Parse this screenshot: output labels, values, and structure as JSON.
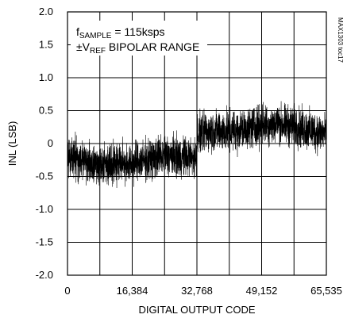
{
  "chart_data": {
    "type": "line",
    "title": "",
    "xlabel": "DIGITAL OUTPUT CODE",
    "ylabel": "INL (LSB)",
    "xlim": [
      0,
      65535
    ],
    "ylim": [
      -2.0,
      2.0
    ],
    "grid": true,
    "x_tick_labels": [
      "0",
      "16,384",
      "32,768",
      "49,152",
      "65,535"
    ],
    "x_ticks": [
      0,
      8192,
      16384,
      24576,
      32768,
      40960,
      49152,
      57344,
      65535
    ],
    "y_tick_labels": [
      "2.0",
      "1.5",
      "1.0",
      "0.5",
      "0",
      "-0.5",
      "-1.0",
      "-1.5",
      "-2.0"
    ],
    "y_ticks": [
      2.0,
      1.5,
      1.0,
      0.5,
      0,
      -0.5,
      -1.0,
      -1.5,
      -2.0
    ],
    "annotations": {
      "line1_main": "f",
      "line1_sub": "SAMPLE",
      "line1_rest": " = 115ksps",
      "line2_pm": "±V",
      "line2_sub": "REF",
      "line2_rest": " BIPOLAR RANGE"
    },
    "side_label": "MAX1303 toc17",
    "series": [
      {
        "segments": [
          {
            "x": [
              0,
              4096,
              8192,
              12288,
              16384,
              20480,
              24576,
              28672,
              32767
            ],
            "center": [
              -0.2,
              -0.25,
              -0.32,
              -0.28,
              -0.3,
              -0.25,
              -0.18,
              -0.2,
              -0.22
            ],
            "spread": 0.45
          },
          {
            "x": [
              32768,
              36864,
              40960,
              45056,
              49152,
              53248,
              57344,
              61440,
              65535
            ],
            "center": [
              0.15,
              0.2,
              0.18,
              0.22,
              0.28,
              0.3,
              0.26,
              0.2,
              0.15
            ],
            "spread": 0.45
          }
        ]
      }
    ],
    "color": "#000000"
  }
}
